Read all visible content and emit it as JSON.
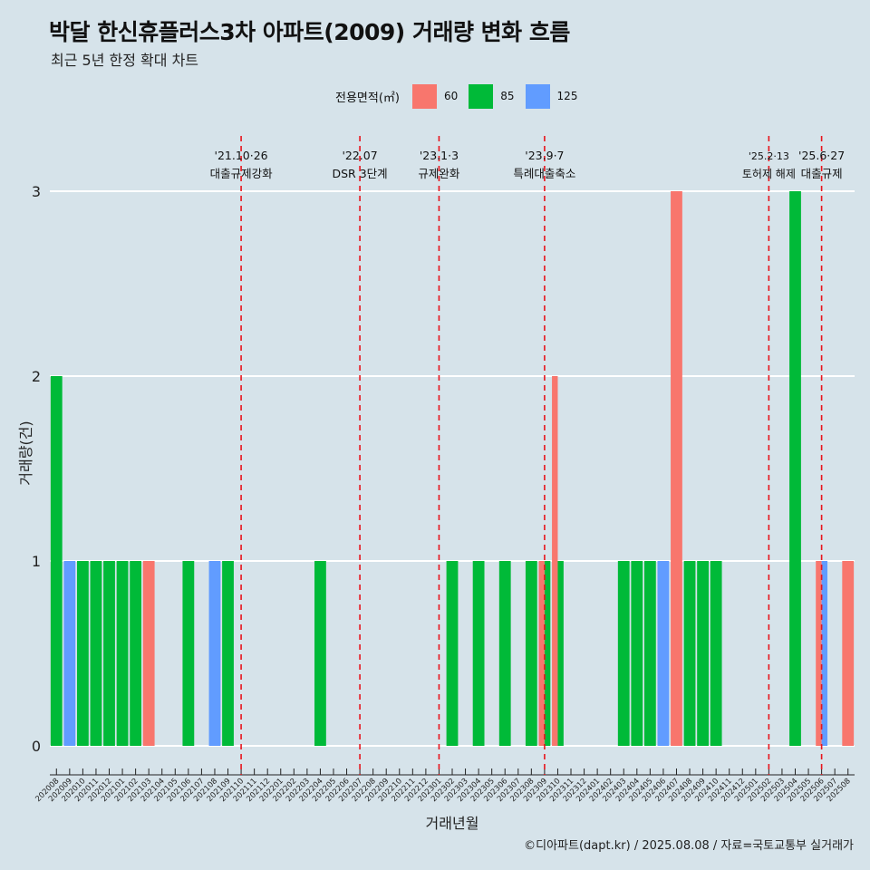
{
  "title": "박달 한신휴플러스3차 아파트(2009) 거래량 변화 흐름",
  "subtitle": "최근 5년 한정 확대 차트",
  "legend": {
    "title": "전용면적(㎡)",
    "items": [
      {
        "label": "60",
        "color": "#f8766d"
      },
      {
        "label": "85",
        "color": "#00ba38"
      },
      {
        "label": "125",
        "color": "#619cff"
      }
    ]
  },
  "caption": "©디아파트(dapt.kr) / 2025.08.08 / 자료=국토교통부 실거래가",
  "chart_data": {
    "type": "bar",
    "title": "박달 한신휴플러스3차 아파트(2009) 거래량 변화 흐름",
    "subtitle": "최근 5년 한정 확대 차트",
    "xlabel": "거래년월",
    "ylabel": "거래량(건)",
    "ylim": [
      0,
      3
    ],
    "yticks": [
      0,
      1,
      2,
      3
    ],
    "grid": true,
    "legend_position": "top",
    "categories": [
      "202008",
      "202009",
      "202010",
      "202011",
      "202012",
      "202101",
      "202102",
      "202103",
      "202104",
      "202105",
      "202106",
      "202107",
      "202108",
      "202109",
      "202110",
      "202111",
      "202112",
      "202201",
      "202202",
      "202203",
      "202204",
      "202205",
      "202206",
      "202207",
      "202208",
      "202209",
      "202210",
      "202211",
      "202212",
      "202301",
      "202302",
      "202303",
      "202304",
      "202305",
      "202306",
      "202307",
      "202308",
      "202309",
      "202310",
      "202311",
      "202312",
      "202401",
      "202402",
      "202403",
      "202404",
      "202405",
      "202406",
      "202407",
      "202408",
      "202409",
      "202410",
      "202411",
      "202412",
      "202501",
      "202502",
      "202503",
      "202504",
      "202505",
      "202506",
      "202507",
      "202508"
    ],
    "series": [
      {
        "name": "60",
        "color": "#f8766d",
        "values": [
          0,
          0,
          0,
          0,
          0,
          0,
          0,
          1,
          0,
          0,
          0,
          0,
          0,
          0,
          0,
          0,
          0,
          0,
          0,
          0,
          0,
          0,
          0,
          0,
          0,
          0,
          0,
          0,
          0,
          0,
          0,
          0,
          0,
          0,
          0,
          0,
          0,
          1,
          2,
          0,
          0,
          0,
          0,
          0,
          0,
          0,
          0,
          3,
          0,
          0,
          0,
          0,
          0,
          0,
          0,
          0,
          0,
          0,
          1,
          0,
          1
        ]
      },
      {
        "name": "85",
        "color": "#00ba38",
        "values": [
          2,
          0,
          1,
          1,
          1,
          1,
          1,
          0,
          0,
          0,
          1,
          0,
          0,
          1,
          0,
          0,
          0,
          0,
          0,
          0,
          1,
          0,
          0,
          0,
          0,
          0,
          0,
          0,
          0,
          0,
          1,
          0,
          1,
          0,
          1,
          0,
          1,
          1,
          1,
          0,
          0,
          0,
          0,
          1,
          1,
          1,
          0,
          0,
          1,
          1,
          1,
          0,
          0,
          0,
          0,
          0,
          3,
          0,
          0,
          0,
          0
        ]
      },
      {
        "name": "125",
        "color": "#619cff",
        "values": [
          0,
          1,
          0,
          0,
          0,
          0,
          0,
          0,
          0,
          0,
          0,
          0,
          1,
          0,
          0,
          0,
          0,
          0,
          0,
          0,
          0,
          0,
          0,
          0,
          0,
          0,
          0,
          0,
          0,
          0,
          0,
          0,
          0,
          0,
          0,
          0,
          0,
          0,
          0,
          0,
          0,
          0,
          0,
          0,
          0,
          0,
          1,
          0,
          0,
          0,
          0,
          0,
          0,
          0,
          0,
          0,
          0,
          0,
          1,
          0,
          0
        ]
      }
    ],
    "annotations": [
      {
        "category": "202110",
        "date": "'21.10·26",
        "label": "대출규제강화"
      },
      {
        "category": "202207",
        "date": "'22.07",
        "label": "DSR 3단계"
      },
      {
        "category": "202301",
        "date": "'23.1·3",
        "label": "규제완화"
      },
      {
        "category": "202309",
        "date": "'23.9·7",
        "label": "특례대출축소"
      },
      {
        "category": "202502",
        "date": "'25.2·13",
        "label": "토허제 해제"
      },
      {
        "category": "202506",
        "date": "'25.6·27",
        "label": "대출규제"
      }
    ]
  }
}
